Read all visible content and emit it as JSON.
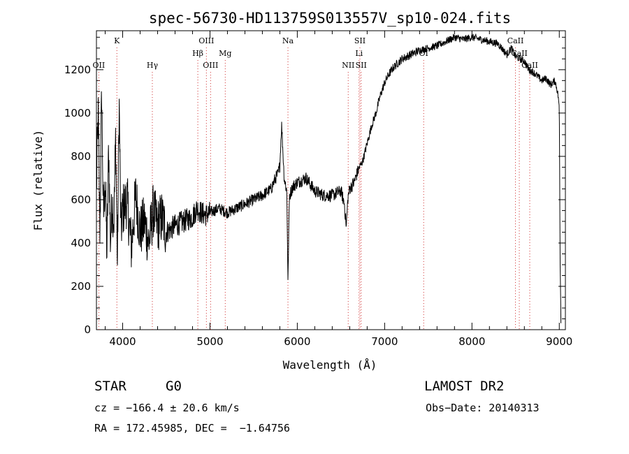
{
  "chart_data": {
    "type": "line",
    "title": "spec-56730-HD113759S013557V_sp10-024.fits",
    "xlabel": "Wavelength (Å)",
    "ylabel": "Flux (relative)",
    "xlim": [
      3700,
      9070
    ],
    "ylim": [
      0,
      1380
    ],
    "x_ticks": [
      4000,
      5000,
      6000,
      7000,
      8000,
      9000
    ],
    "y_ticks": [
      0,
      200,
      400,
      600,
      800,
      1000,
      1200
    ],
    "grid": false,
    "series": [
      {
        "x": [
          3700,
          3720,
          3740,
          3760,
          3780,
          3800,
          3820,
          3840,
          3860,
          3880,
          3900,
          3920,
          3940,
          3960,
          3980,
          4000,
          4050,
          4100,
          4150,
          4200,
          4250,
          4300,
          4350,
          4400,
          4450,
          4500,
          4600,
          4700,
          4800,
          4850,
          4900,
          4950,
          5000,
          5100,
          5200,
          5300,
          5400,
          5500,
          5600,
          5700,
          5750,
          5780,
          5800,
          5820,
          5850,
          5880,
          5893,
          5910,
          5950,
          6000,
          6100,
          6200,
          6300,
          6400,
          6500,
          6540,
          6560,
          6580,
          6600,
          6650,
          6700,
          6750,
          6800,
          6850,
          6900,
          6950,
          7000,
          7050,
          7100,
          7200,
          7300,
          7400,
          7500,
          7600,
          7700,
          7800,
          7900,
          8000,
          8100,
          8200,
          8300,
          8400,
          8450,
          8500,
          8550,
          8600,
          8650,
          8700,
          8750,
          8800,
          8850,
          8900,
          8950,
          8980,
          9000,
          9010,
          9020
        ],
        "y": [
          650,
          1000,
          450,
          1110,
          500,
          700,
          350,
          850,
          400,
          600,
          500,
          900,
          300,
          1060,
          450,
          550,
          600,
          380,
          620,
          450,
          500,
          400,
          550,
          480,
          520,
          450,
          480,
          500,
          520,
          560,
          540,
          530,
          540,
          560,
          540,
          560,
          580,
          600,
          620,
          650,
          700,
          720,
          760,
          950,
          700,
          640,
          230,
          620,
          660,
          680,
          700,
          640,
          620,
          620,
          640,
          580,
          470,
          610,
          650,
          680,
          740,
          780,
          860,
          940,
          1000,
          1080,
          1140,
          1180,
          1210,
          1250,
          1270,
          1290,
          1300,
          1310,
          1330,
          1350,
          1340,
          1350,
          1340,
          1330,
          1320,
          1270,
          1300,
          1260,
          1250,
          1240,
          1200,
          1190,
          1170,
          1150,
          1160,
          1130,
          1150,
          1100,
          1030,
          300,
          0
        ]
      }
    ],
    "lines": [
      {
        "label": "OII",
        "x": 3727,
        "row": 2
      },
      {
        "label": "K",
        "x": 3934,
        "row": 0
      },
      {
        "label": "Hγ",
        "x": 4340,
        "row": 2
      },
      {
        "label": "Hβ",
        "x": 4861,
        "row": 1
      },
      {
        "label": "OIII",
        "x": 4959,
        "row": 0
      },
      {
        "label": "OIII",
        "x": 5007,
        "row": 2
      },
      {
        "label": "Mg",
        "x": 5175,
        "row": 1
      },
      {
        "label": "Na",
        "x": 5893,
        "row": 0
      },
      {
        "label": "NII",
        "x": 6583,
        "row": 2
      },
      {
        "label": "SII",
        "x": 6717,
        "row": 0
      },
      {
        "label": "Li",
        "x": 6707,
        "row": 1
      },
      {
        "label": "SII",
        "x": 6731,
        "row": 2
      },
      {
        "label": "OI",
        "x": 7447,
        "row": 1
      },
      {
        "label": "CaII",
        "x": 8498,
        "row": 0
      },
      {
        "label": "CaII",
        "x": 8542,
        "row": 1
      },
      {
        "label": "CaII",
        "x": 8662,
        "row": 2
      }
    ]
  },
  "info": {
    "object_class": "STAR",
    "subclass": "G0",
    "survey": "LAMOST DR2",
    "cz": "cz = −166.4 ± 20.6 km/s",
    "obs_date": "Obs−Date: 20140313",
    "coords": "RA = 172.45985, DEC =  −1.64756"
  }
}
